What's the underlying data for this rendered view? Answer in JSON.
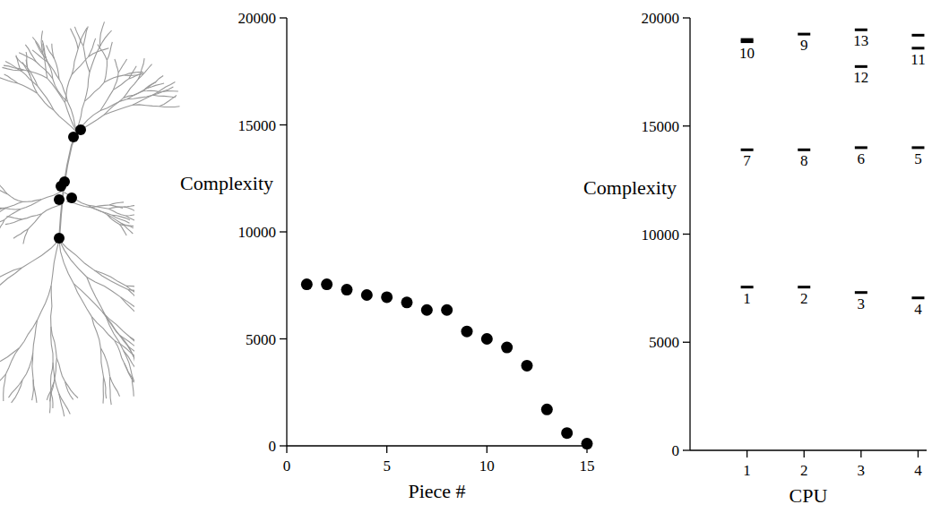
{
  "chart_data": [
    {
      "type": "scatter",
      "x_label": "Piece #",
      "y_label": "Complexity",
      "x": [
        1,
        2,
        3,
        4,
        5,
        6,
        7,
        8,
        9,
        10,
        11,
        12,
        13,
        14,
        15
      ],
      "values": [
        7550,
        7550,
        7300,
        7050,
        6950,
        6700,
        6350,
        6350,
        5350,
        5000,
        4600,
        3750,
        1700,
        600,
        100
      ],
      "xlim": [
        0,
        15
      ],
      "xticks": [
        0,
        5,
        10,
        15
      ],
      "ylim": [
        0,
        20000
      ],
      "yticks": [
        0,
        5000,
        10000,
        15000,
        20000
      ],
      "color": "#000000",
      "marker": "circle"
    },
    {
      "type": "bar",
      "stacked": true,
      "marker": "dash",
      "x_label": "CPU",
      "y_label": "Complexity",
      "xlim": [
        0,
        4.15
      ],
      "xticks": [
        1,
        2,
        3,
        4
      ],
      "ylim": [
        0,
        20000
      ],
      "yticks": [
        0,
        5000,
        10000,
        15000,
        20000
      ],
      "color": "#000000",
      "stacks": [
        {
          "x": 1,
          "values": [
            7550,
            6350,
            5000,
            100
          ],
          "labels": [
            "1",
            "7",
            "10",
            null
          ]
        },
        {
          "x": 2,
          "values": [
            7550,
            6350,
            5350
          ],
          "labels": [
            "2",
            "8",
            "9"
          ]
        },
        {
          "x": 3,
          "values": [
            7300,
            6700,
            3750,
            1700
          ],
          "labels": [
            "3",
            "6",
            "12",
            "13"
          ]
        },
        {
          "x": 4,
          "values": [
            7050,
            6950,
            4600,
            600
          ],
          "labels": [
            "4",
            "5",
            "11",
            null
          ]
        }
      ]
    }
  ]
}
